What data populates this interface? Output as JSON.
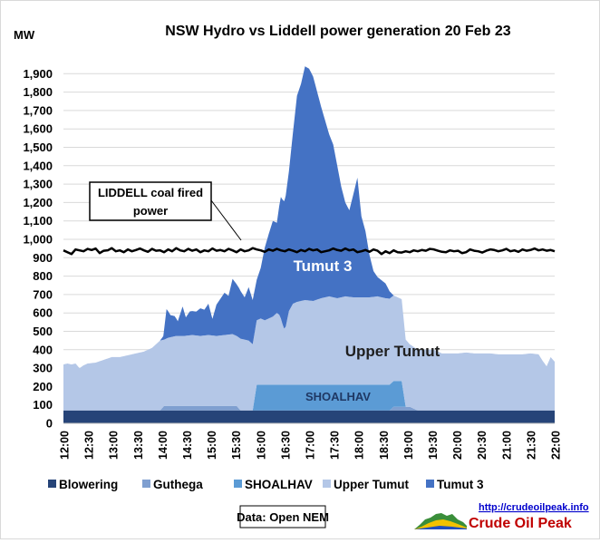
{
  "chart_data": {
    "type": "area",
    "title": "NSW Hydro vs Liddell power generation 20 Feb 23",
    "ylabel": "MW",
    "xlabel": "",
    "ylim": [
      0,
      2000
    ],
    "y_ticks": [
      "0",
      "100",
      "200",
      "300",
      "400",
      "500",
      "600",
      "700",
      "800",
      "900",
      "1,000",
      "1,100",
      "1,200",
      "1,300",
      "1,400",
      "1,500",
      "1,600",
      "1,700",
      "1,800",
      "1,900"
    ],
    "x_ticks": [
      "12:00",
      "12:30",
      "13:00",
      "13:30",
      "14:00",
      "14:30",
      "15:00",
      "15:30",
      "16:00",
      "16:30",
      "17:00",
      "17:30",
      "18:00",
      "18:30",
      "19:00",
      "19:30",
      "20:00",
      "20:30",
      "21:00",
      "21:30",
      "22:00"
    ],
    "grid": true,
    "legend": "bottom",
    "stacked": true,
    "series": [
      {
        "name": "Blowering",
        "color": "#264478",
        "points": [
          [
            0,
            70
          ],
          [
            10,
            70
          ],
          [
            20,
            70
          ],
          [
            40,
            70
          ],
          [
            60,
            70
          ],
          [
            80,
            70
          ],
          [
            100,
            70
          ],
          [
            120,
            70
          ],
          [
            150,
            70
          ],
          [
            180,
            70
          ],
          [
            210,
            70
          ],
          [
            240,
            70
          ],
          [
            270,
            70
          ],
          [
            300,
            70
          ],
          [
            330,
            70
          ],
          [
            360,
            70
          ],
          [
            390,
            70
          ],
          [
            420,
            70
          ],
          [
            450,
            70
          ],
          [
            480,
            70
          ],
          [
            510,
            70
          ],
          [
            540,
            70
          ],
          [
            570,
            70
          ],
          [
            600,
            70
          ]
        ]
      },
      {
        "name": "Guthega",
        "color": "#7f9fd0",
        "points": [
          [
            0,
            0
          ],
          [
            120,
            0
          ],
          [
            125,
            25
          ],
          [
            135,
            25
          ],
          [
            160,
            25
          ],
          [
            180,
            25
          ],
          [
            200,
            25
          ],
          [
            215,
            25
          ],
          [
            220,
            0
          ],
          [
            405,
            0
          ],
          [
            410,
            20
          ],
          [
            420,
            20
          ],
          [
            430,
            20
          ],
          [
            440,
            0
          ],
          [
            600,
            0
          ]
        ]
      },
      {
        "name": "SHOALHAV",
        "color": "#5b9bd5",
        "points": [
          [
            0,
            0
          ],
          [
            235,
            0
          ],
          [
            240,
            140
          ],
          [
            270,
            140
          ],
          [
            300,
            140
          ],
          [
            330,
            140
          ],
          [
            360,
            140
          ],
          [
            390,
            140
          ],
          [
            420,
            140
          ],
          [
            425,
            0
          ],
          [
            600,
            0
          ]
        ]
      },
      {
        "name": "Upper Tumut",
        "color": "#b4c7e7",
        "points": [
          [
            0,
            250
          ],
          [
            5,
            255
          ],
          [
            10,
            250
          ],
          [
            15,
            255
          ],
          [
            20,
            230
          ],
          [
            25,
            245
          ],
          [
            30,
            255
          ],
          [
            40,
            260
          ],
          [
            50,
            275
          ],
          [
            60,
            290
          ],
          [
            70,
            290
          ],
          [
            80,
            300
          ],
          [
            90,
            310
          ],
          [
            100,
            320
          ],
          [
            110,
            340
          ],
          [
            120,
            380
          ],
          [
            125,
            360
          ],
          [
            130,
            370
          ],
          [
            140,
            380
          ],
          [
            150,
            380
          ],
          [
            160,
            385
          ],
          [
            170,
            380
          ],
          [
            180,
            385
          ],
          [
            190,
            380
          ],
          [
            200,
            385
          ],
          [
            210,
            390
          ],
          [
            215,
            380
          ],
          [
            220,
            390
          ],
          [
            230,
            380
          ],
          [
            235,
            360
          ],
          [
            240,
            350
          ],
          [
            245,
            360
          ],
          [
            250,
            350
          ],
          [
            255,
            360
          ],
          [
            260,
            370
          ],
          [
            265,
            390
          ],
          [
            268,
            380
          ],
          [
            270,
            360
          ],
          [
            272,
            330
          ],
          [
            274,
            305
          ],
          [
            276,
            315
          ],
          [
            280,
            400
          ],
          [
            285,
            440
          ],
          [
            290,
            450
          ],
          [
            300,
            460
          ],
          [
            310,
            455
          ],
          [
            320,
            470
          ],
          [
            330,
            480
          ],
          [
            340,
            470
          ],
          [
            350,
            480
          ],
          [
            360,
            475
          ],
          [
            370,
            475
          ],
          [
            380,
            475
          ],
          [
            390,
            480
          ],
          [
            400,
            470
          ],
          [
            410,
            465
          ],
          [
            420,
            445
          ],
          [
            425,
            365
          ],
          [
            430,
            340
          ],
          [
            440,
            330
          ],
          [
            450,
            330
          ],
          [
            460,
            330
          ],
          [
            470,
            310
          ],
          [
            480,
            310
          ],
          [
            490,
            310
          ],
          [
            500,
            315
          ],
          [
            510,
            310
          ],
          [
            520,
            310
          ],
          [
            530,
            310
          ],
          [
            540,
            305
          ],
          [
            550,
            305
          ],
          [
            560,
            305
          ],
          [
            570,
            305
          ],
          [
            580,
            310
          ],
          [
            590,
            305
          ],
          [
            595,
            270
          ],
          [
            600,
            240
          ],
          [
            605,
            290
          ],
          [
            610,
            265
          ]
        ]
      },
      {
        "name": "Tumut 3",
        "color": "#4472c4",
        "points": [
          [
            0,
            0
          ],
          [
            110,
            0
          ],
          [
            120,
            0
          ],
          [
            124,
            20
          ],
          [
            128,
            160
          ],
          [
            133,
            120
          ],
          [
            138,
            110
          ],
          [
            142,
            80
          ],
          [
            148,
            160
          ],
          [
            152,
            100
          ],
          [
            157,
            130
          ],
          [
            165,
            130
          ],
          [
            170,
            150
          ],
          [
            175,
            140
          ],
          [
            180,
            170
          ],
          [
            185,
            90
          ],
          [
            190,
            170
          ],
          [
            200,
            230
          ],
          [
            205,
            210
          ],
          [
            210,
            300
          ],
          [
            218,
            270
          ],
          [
            225,
            230
          ],
          [
            230,
            290
          ],
          [
            235,
            240
          ],
          [
            240,
            220
          ],
          [
            245,
            275
          ],
          [
            250,
            395
          ],
          [
            255,
            460
          ],
          [
            260,
            520
          ],
          [
            265,
            490
          ],
          [
            270,
            660
          ],
          [
            275,
            700
          ],
          [
            280,
            760
          ],
          [
            285,
            930
          ],
          [
            290,
            1120
          ],
          [
            295,
            1180
          ],
          [
            300,
            1270
          ],
          [
            305,
            1260
          ],
          [
            310,
            1220
          ],
          [
            315,
            1130
          ],
          [
            320,
            1040
          ],
          [
            325,
            960
          ],
          [
            330,
            880
          ],
          [
            335,
            830
          ],
          [
            340,
            720
          ],
          [
            345,
            600
          ],
          [
            350,
            510
          ],
          [
            355,
            470
          ],
          [
            360,
            560
          ],
          [
            365,
            650
          ],
          [
            370,
            440
          ],
          [
            375,
            360
          ],
          [
            380,
            230
          ],
          [
            385,
            140
          ],
          [
            390,
            105
          ],
          [
            400,
            80
          ],
          [
            410,
            0
          ],
          [
            610,
            0
          ]
        ]
      }
    ],
    "overlay_line": {
      "name": "LIDDELL coal fired power",
      "color": "#000000",
      "points": [
        [
          0,
          940
        ],
        [
          5,
          930
        ],
        [
          10,
          920
        ],
        [
          15,
          945
        ],
        [
          20,
          940
        ],
        [
          25,
          935
        ],
        [
          30,
          948
        ],
        [
          35,
          942
        ],
        [
          40,
          950
        ],
        [
          45,
          925
        ],
        [
          50,
          938
        ],
        [
          55,
          940
        ],
        [
          60,
          952
        ],
        [
          65,
          935
        ],
        [
          70,
          940
        ],
        [
          75,
          930
        ],
        [
          80,
          945
        ],
        [
          85,
          935
        ],
        [
          90,
          942
        ],
        [
          95,
          950
        ],
        [
          100,
          940
        ],
        [
          105,
          932
        ],
        [
          110,
          948
        ],
        [
          115,
          938
        ],
        [
          120,
          940
        ],
        [
          125,
          930
        ],
        [
          130,
          945
        ],
        [
          135,
          935
        ],
        [
          140,
          952
        ],
        [
          145,
          940
        ],
        [
          150,
          935
        ],
        [
          155,
          948
        ],
        [
          160,
          938
        ],
        [
          165,
          945
        ],
        [
          170,
          930
        ],
        [
          175,
          940
        ],
        [
          180,
          935
        ],
        [
          185,
          950
        ],
        [
          190,
          938
        ],
        [
          195,
          942
        ],
        [
          200,
          935
        ],
        [
          205,
          948
        ],
        [
          210,
          940
        ],
        [
          215,
          930
        ],
        [
          220,
          945
        ],
        [
          225,
          935
        ],
        [
          230,
          940
        ],
        [
          235,
          952
        ],
        [
          240,
          945
        ],
        [
          245,
          940
        ],
        [
          250,
          932
        ],
        [
          255,
          945
        ],
        [
          260,
          938
        ],
        [
          265,
          948
        ],
        [
          270,
          940
        ],
        [
          275,
          935
        ],
        [
          280,
          945
        ],
        [
          285,
          938
        ],
        [
          290,
          930
        ],
        [
          295,
          942
        ],
        [
          300,
          935
        ],
        [
          305,
          948
        ],
        [
          310,
          940
        ],
        [
          315,
          945
        ],
        [
          320,
          930
        ],
        [
          325,
          935
        ],
        [
          330,
          940
        ],
        [
          335,
          950
        ],
        [
          340,
          942
        ],
        [
          345,
          938
        ],
        [
          350,
          950
        ],
        [
          355,
          940
        ],
        [
          360,
          945
        ],
        [
          365,
          930
        ],
        [
          370,
          935
        ],
        [
          375,
          942
        ],
        [
          380,
          932
        ],
        [
          385,
          945
        ],
        [
          390,
          938
        ],
        [
          395,
          920
        ],
        [
          400,
          935
        ],
        [
          405,
          925
        ],
        [
          410,
          940
        ],
        [
          415,
          930
        ],
        [
          420,
          928
        ],
        [
          425,
          935
        ],
        [
          430,
          930
        ],
        [
          435,
          940
        ],
        [
          440,
          935
        ],
        [
          445,
          942
        ],
        [
          450,
          938
        ],
        [
          455,
          948
        ],
        [
          460,
          945
        ],
        [
          465,
          938
        ],
        [
          470,
          932
        ],
        [
          475,
          930
        ],
        [
          480,
          940
        ],
        [
          485,
          935
        ],
        [
          490,
          938
        ],
        [
          495,
          925
        ],
        [
          500,
          930
        ],
        [
          505,
          945
        ],
        [
          510,
          938
        ],
        [
          515,
          935
        ],
        [
          520,
          928
        ],
        [
          525,
          938
        ],
        [
          530,
          945
        ],
        [
          535,
          942
        ],
        [
          540,
          935
        ],
        [
          545,
          940
        ],
        [
          550,
          948
        ],
        [
          555,
          935
        ],
        [
          560,
          940
        ],
        [
          565,
          932
        ],
        [
          570,
          945
        ],
        [
          575,
          938
        ],
        [
          580,
          942
        ],
        [
          585,
          950
        ],
        [
          590,
          940
        ],
        [
          595,
          945
        ],
        [
          600,
          938
        ],
        [
          605,
          942
        ],
        [
          610,
          935
        ]
      ]
    },
    "annotations": {
      "liddell_label_line1": "LIDDELL coal fired",
      "liddell_label_line2": "power",
      "tumut3_label": "Tumut 3",
      "upper_tumut_label": "Upper Tumut",
      "shoalhav_label": "SHOALHAV"
    },
    "source": "Data: Open NEM",
    "url": "http://crudeoilpeak.info",
    "brand": "Crude Oil Peak"
  }
}
